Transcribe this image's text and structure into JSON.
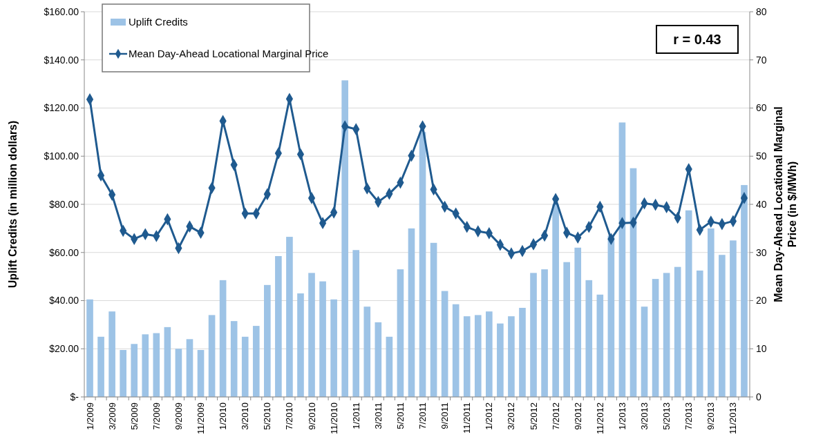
{
  "chart_data": {
    "type": "bar",
    "ylabel": "Uplift Credits (in million dollars)",
    "y2label": "Mean Day-Ahead Locational Marginal Price (in $/MWh)",
    "categories": [
      "1/2009",
      null,
      "3/2009",
      null,
      "5/2009",
      null,
      "7/2009",
      null,
      "9/2009",
      null,
      "11/2009",
      null,
      "1/2010",
      null,
      "3/2010",
      null,
      "5/2010",
      null,
      "7/2010",
      null,
      "9/2010",
      null,
      "11/2010",
      null,
      "1/2011",
      null,
      "3/2011",
      null,
      "5/2011",
      null,
      "7/2011",
      null,
      "9/2011",
      null,
      "11/2011",
      null,
      "1/2012",
      null,
      "3/2012",
      null,
      "5/2012",
      null,
      "7/2012",
      null,
      "9/2012",
      null,
      "11/2012",
      null,
      "1/2013",
      null,
      "3/2013",
      null,
      "5/2013",
      null,
      "7/2013",
      null,
      "9/2013",
      null,
      "11/2013",
      null
    ],
    "series": [
      {
        "name": "Uplift Credits",
        "color": "#9dc3e6",
        "values": [
          40.5,
          25,
          35.5,
          19.5,
          22,
          26,
          26.5,
          29,
          20,
          24,
          19.5,
          34,
          48.5,
          31.5,
          25,
          29.5,
          46.5,
          58.5,
          66.5,
          43,
          51.5,
          48,
          40.5,
          131.5,
          61,
          37.5,
          31,
          25,
          53,
          70,
          110,
          64,
          44,
          38.5,
          33.5,
          34,
          35.5,
          30.5,
          33.5,
          37,
          51.5,
          53,
          80,
          56,
          62,
          48.5,
          42.5,
          67,
          114,
          95,
          37.5,
          49,
          51.5,
          54,
          77.5,
          52.5,
          70,
          59,
          65,
          88
        ]
      },
      {
        "name": "Mean Day-Ahead Locational Marginal Price",
        "type": "line",
        "axis": "y2",
        "color": "#1f5a8f",
        "marker": "diamond",
        "values": [
          61.8,
          46,
          42,
          34.5,
          32.8,
          33.8,
          33.4,
          36.9,
          30.9,
          35.4,
          34.1,
          43.4,
          57.3,
          48.2,
          38.1,
          38.1,
          42.1,
          50.6,
          61.9,
          50.4,
          41.3,
          36.1,
          38.3,
          56.2,
          55.6,
          43.3,
          40.5,
          42.2,
          44.5,
          50.1,
          56.2,
          43.1,
          39.5,
          38.1,
          35.3,
          34.4,
          34,
          31.6,
          29.8,
          30.3,
          31.7,
          33.5,
          41.1,
          34.1,
          33.1,
          35.3,
          39.5,
          32.8,
          36.1,
          36.2,
          40.2,
          39.9,
          39.4,
          37.2,
          47.3,
          34.7,
          36.4,
          35.9,
          36.5,
          41.3
        ]
      }
    ],
    "ylim": [
      0,
      160
    ],
    "yticks": [
      {
        "value": 0,
        "label": "$-"
      },
      {
        "value": 20,
        "label": "$20.00"
      },
      {
        "value": 40,
        "label": "$40.00"
      },
      {
        "value": 60,
        "label": "$60.00"
      },
      {
        "value": 80,
        "label": "$80.00"
      },
      {
        "value": 100,
        "label": "$100.00"
      },
      {
        "value": 120,
        "label": "$120.00"
      },
      {
        "value": 140,
        "label": "$140.00"
      },
      {
        "value": 160,
        "label": "$160.00"
      }
    ],
    "y2lim": [
      0,
      80
    ],
    "y2ticks": [
      0,
      10,
      20,
      30,
      40,
      50,
      60,
      70,
      80
    ],
    "grid": "y",
    "legend": "top left",
    "annotations": [
      "r = 0.43"
    ]
  }
}
